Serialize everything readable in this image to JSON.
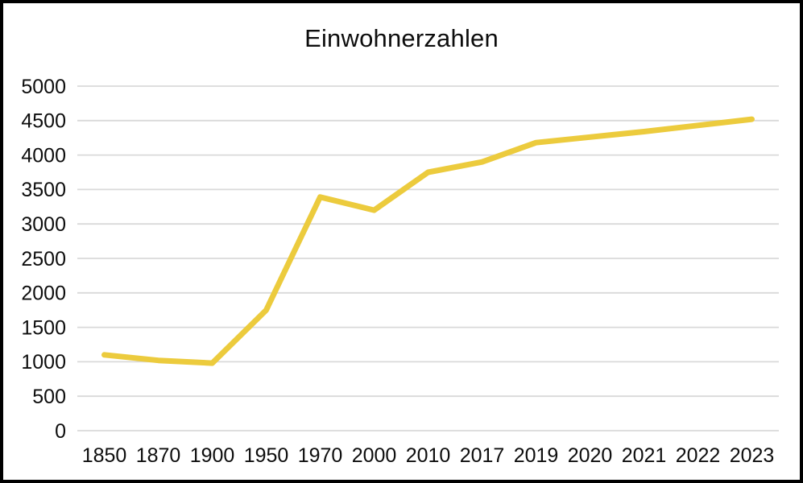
{
  "frame": {
    "background": "#FFFFFF",
    "border_color": "#000000"
  },
  "chart_data": {
    "type": "line",
    "title": "Einwohnerzahlen",
    "categories": [
      "1850",
      "1870",
      "1900",
      "1950",
      "1970",
      "2000",
      "2010",
      "2017",
      "2019",
      "2020",
      "2021",
      "2022",
      "2023"
    ],
    "values": [
      1100,
      1020,
      980,
      1750,
      3390,
      3200,
      3750,
      3900,
      4180,
      4260,
      4340,
      4430,
      4520
    ],
    "xlabel": "",
    "ylabel": "",
    "ylim": [
      0,
      5000
    ],
    "yticks": [
      0,
      500,
      1000,
      1500,
      2000,
      2500,
      3000,
      3500,
      4000,
      4500,
      5000
    ],
    "grid": "horizontal",
    "legend": "none",
    "line_color": "#ECCB3D",
    "line_width": 7,
    "gridline_color": "#D9D9D9",
    "tick_text_color": "#0D0D0D",
    "tick_font_size": 25
  }
}
